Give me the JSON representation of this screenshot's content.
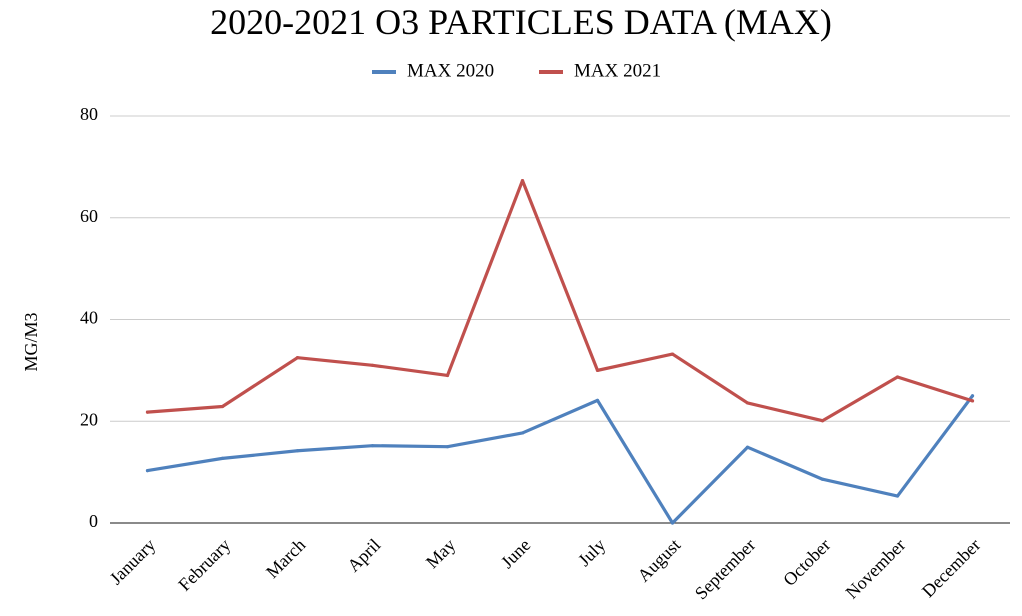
{
  "chart_data": {
    "type": "line",
    "title": "2020-2021 O3 PARTICLES DATA (MAX)",
    "xlabel": "",
    "ylabel": "MG/M3",
    "ylim": [
      0,
      80
    ],
    "yticks": [
      0,
      20,
      40,
      60,
      80
    ],
    "grid": true,
    "legend": "top",
    "categories": [
      "January",
      "February",
      "March",
      "April",
      "May",
      "June",
      "July",
      "August",
      "September",
      "October",
      "November",
      "December"
    ],
    "series": [
      {
        "name": "MAX 2020",
        "color": "#4f81bd",
        "values": [
          10.3,
          12.7,
          14.2,
          15.2,
          15.0,
          17.7,
          24.1,
          0.0,
          14.9,
          8.6,
          5.3,
          25.0
        ]
      },
      {
        "name": "MAX 2021",
        "color": "#c0504d",
        "values": [
          21.8,
          22.9,
          32.5,
          31.0,
          29.0,
          67.3,
          30.0,
          33.2,
          23.6,
          20.1,
          28.7,
          24.0
        ]
      }
    ]
  }
}
